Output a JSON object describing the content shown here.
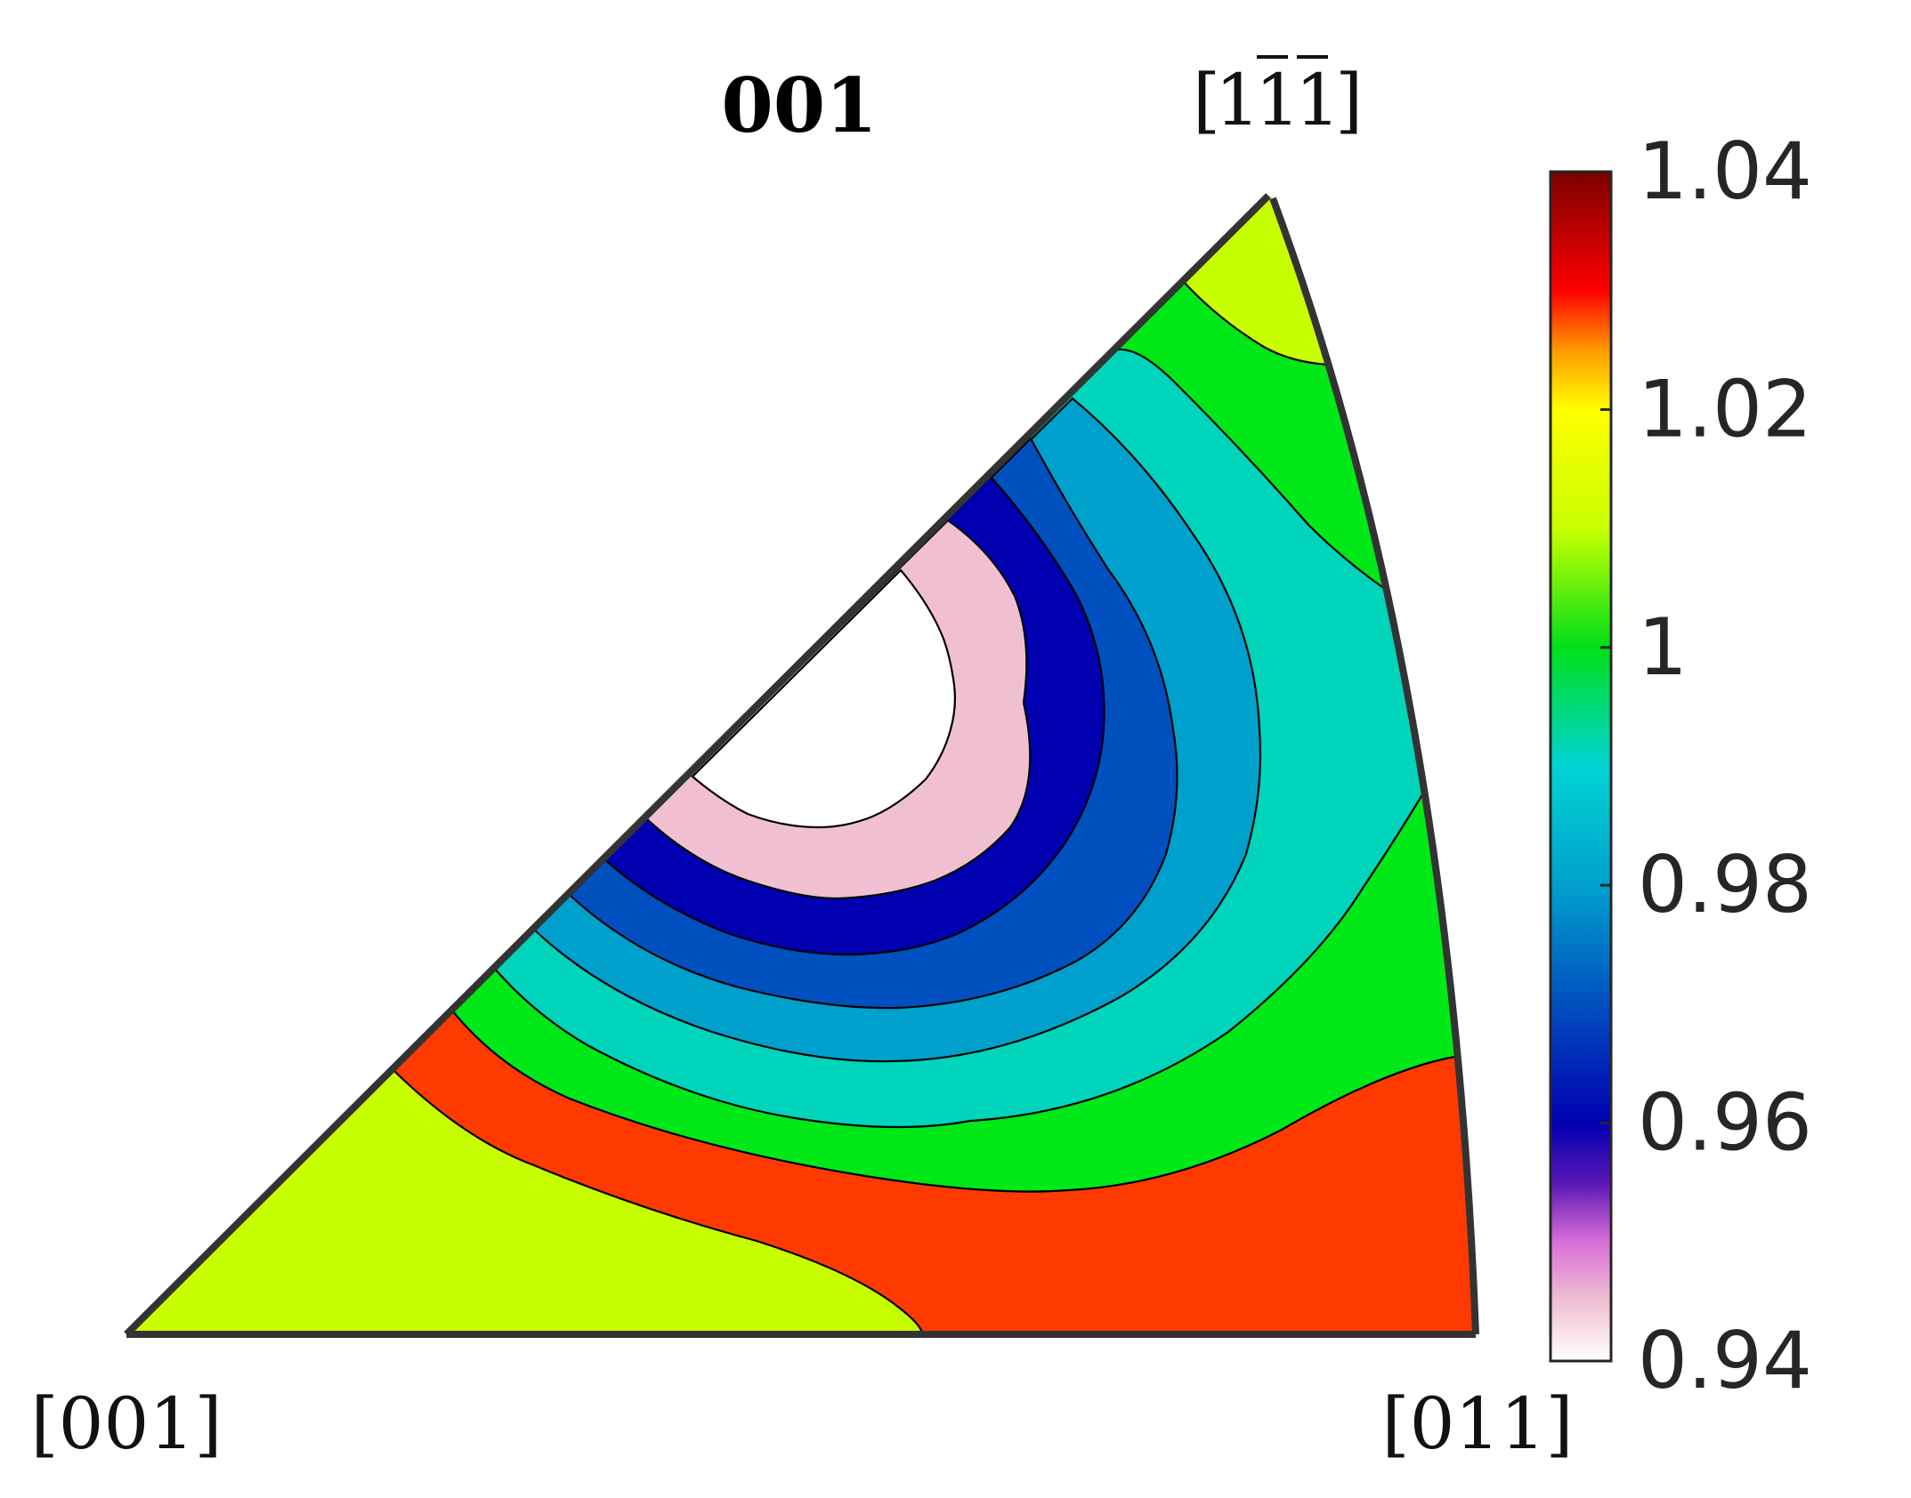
{
  "chart_data": {
    "type": "heatmap",
    "subtype": "inverse pole figure contour (filled)",
    "title": "001",
    "corner_labels": {
      "origin": "[001]",
      "right": "[011]",
      "top": "[1̄̄1̄̄]",
      "top_parts": {
        "prefix": "1",
        "bars": [
          "1",
          "1"
        ]
      }
    },
    "colorbar": {
      "range": [
        0.94,
        1.04
      ],
      "ticks": [
        0.94,
        0.96,
        0.98,
        1,
        1.02,
        1.04
      ],
      "tick_labels": [
        "0.94",
        "0.96",
        "0.98",
        "1",
        "1.02",
        "1.04"
      ],
      "colors": [
        {
          "value": 0.94,
          "color": "#ffffff"
        },
        {
          "value": 0.945,
          "color": "#f0c0d2"
        },
        {
          "value": 0.95,
          "color": "#d96fd8"
        },
        {
          "value": 0.955,
          "color": "#5a16b5"
        },
        {
          "value": 0.96,
          "color": "#0000b0"
        },
        {
          "value": 0.97,
          "color": "#004fc0"
        },
        {
          "value": 0.98,
          "color": "#00a0cc"
        },
        {
          "value": 0.99,
          "color": "#00d4d4"
        },
        {
          "value": 1.0,
          "color": "#00e018"
        },
        {
          "value": 1.01,
          "color": "#c8ff00"
        },
        {
          "value": 1.02,
          "color": "#ffff00"
        },
        {
          "value": 1.025,
          "color": "#ff9900"
        },
        {
          "value": 1.03,
          "color": "#ff0000"
        },
        {
          "value": 1.04,
          "color": "#7a0000"
        }
      ]
    },
    "contour_levels": [
      0.94,
      0.95,
      0.96,
      0.97,
      0.98,
      0.99,
      1.0,
      1.01,
      1.02
    ],
    "regions": [
      {
        "name": "level-1.02",
        "color": "#ff3a00"
      },
      {
        "name": "level-1.01",
        "color": "#c8ff00"
      },
      {
        "name": "level-1.00",
        "color": "#00e818"
      },
      {
        "name": "level-0.99",
        "color": "#00d4bb"
      },
      {
        "name": "level-0.98",
        "color": "#00a0cc"
      },
      {
        "name": "level-0.97",
        "color": "#0050bf"
      },
      {
        "name": "level-0.96",
        "color": "#0000b0"
      },
      {
        "name": "level-0.95",
        "color": "#f0c0d2"
      },
      {
        "name": "level-0.94",
        "color": "#ffffff"
      }
    ]
  }
}
